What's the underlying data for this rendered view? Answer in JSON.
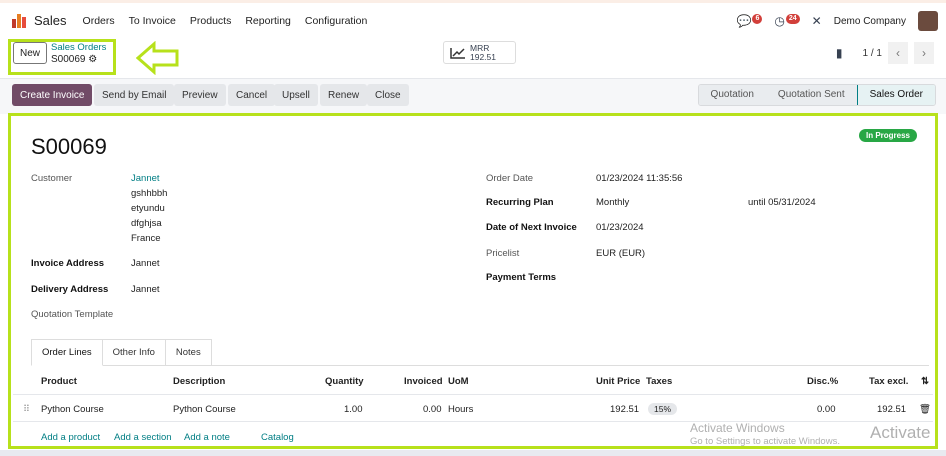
{
  "nav": {
    "app": "Sales",
    "menu": [
      "Orders",
      "To Invoice",
      "Products",
      "Reporting",
      "Configuration"
    ],
    "chat_count": "6",
    "activity_count": "24",
    "company": "Demo Company"
  },
  "control": {
    "new_label": "New",
    "breadcrumb_parent": "Sales Orders",
    "breadcrumb_current": "S00069",
    "mrr_label": "MRR",
    "mrr_value": "192.51",
    "pager": "1 / 1"
  },
  "actions": [
    "Create Invoice",
    "Send by Email",
    "Preview",
    "Cancel",
    "Upsell",
    "Renew",
    "Close"
  ],
  "statusbar": {
    "steps": [
      "Quotation",
      "Quotation Sent",
      "Sales Order"
    ],
    "active": "Sales Order"
  },
  "form": {
    "name": "S00069",
    "status": "In Progress",
    "customer_label": "Customer",
    "customer_name": "Jannet",
    "customer_address": [
      "gshhbbh",
      "etyundu",
      "dfghjsa",
      "France"
    ],
    "invoice_address_label": "Invoice Address",
    "invoice_address": "Jannet",
    "delivery_address_label": "Delivery Address",
    "delivery_address": "Jannet",
    "template_label": "Quotation Template",
    "order_date_label": "Order Date",
    "order_date": "01/23/2024 11:35:56",
    "plan_label": "Recurring Plan",
    "plan": "Monthly",
    "until": "until 05/31/2024",
    "next_invoice_label": "Date of Next Invoice",
    "next_invoice": "01/23/2024",
    "pricelist_label": "Pricelist",
    "pricelist": "EUR (EUR)",
    "payment_terms_label": "Payment Terms"
  },
  "tabs": [
    "Order Lines",
    "Other Info",
    "Notes"
  ],
  "lines": {
    "headers": [
      "Product",
      "Description",
      "Quantity",
      "Invoiced",
      "UoM",
      "Unit Price",
      "Taxes",
      "Disc.%",
      "Tax excl."
    ],
    "rows": [
      {
        "product": "Python Course",
        "description": "Python Course",
        "quantity": "1.00",
        "invoiced": "0.00",
        "uom": "Hours",
        "unit_price": "192.51",
        "taxes": "15%",
        "disc": "0.00",
        "subtotal": "192.51"
      }
    ],
    "add": [
      "Add a product",
      "Add a section",
      "Add a note",
      "Catalog"
    ]
  },
  "watermark": {
    "line1": "Activate Windows",
    "line2": "Go to Settings to activate Windows.",
    "line3": "Activate"
  },
  "colors": {
    "primary": "#714b67",
    "link": "#017e84",
    "highlight": "#b7e11b",
    "success": "#28a745"
  }
}
